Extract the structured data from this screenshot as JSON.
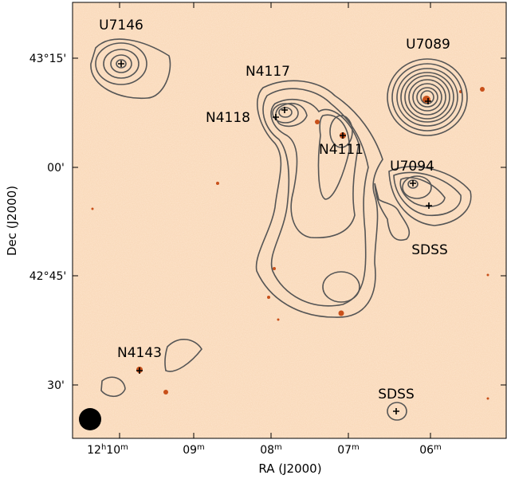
{
  "axes": {
    "x_label": "RA (J2000)",
    "y_label": "Dec (J2000)",
    "x_ticks": [
      [
        "12",
        "h",
        "10",
        "m"
      ],
      [
        "09",
        "m"
      ],
      [
        "08",
        "m"
      ],
      [
        "07",
        "m"
      ],
      [
        "06",
        "m"
      ]
    ],
    "y_ticks": [
      "43°15'",
      "00'",
      "42°45'",
      "30'"
    ]
  },
  "sources": [
    "U7146",
    "N4117",
    "U7089",
    "N4118",
    "N4111",
    "U7094",
    "SDSS",
    "N4143",
    "SDSS"
  ]
}
